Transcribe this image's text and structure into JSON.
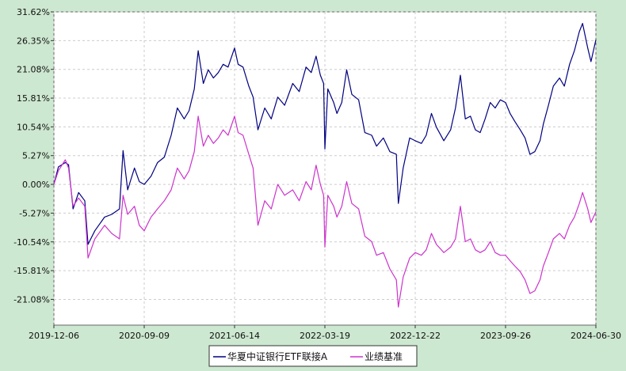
{
  "chart_data": {
    "type": "line",
    "title": "",
    "xlabel": "",
    "ylabel": "",
    "x_tick_labels": [
      "2019-12-06",
      "2020-09-09",
      "2021-06-14",
      "2022-03-19",
      "2022-12-22",
      "2023-09-26",
      "2024-06-30"
    ],
    "x_range": [
      "2019-12-06",
      "2024-06-30"
    ],
    "y_ticks": [
      31.62,
      26.35,
      21.08,
      15.81,
      10.54,
      5.27,
      0.0,
      -5.27,
      -10.54,
      -15.81,
      -21.08
    ],
    "y_tick_labels": [
      "31.62%",
      "26.35%",
      "21.08%",
      "15.81%",
      "10.54%",
      "5.27%",
      "0.00%",
      "-5.27%",
      "-10.54%",
      "-15.81%",
      "-21.08%"
    ],
    "ylim": [
      -25.8,
      31.62
    ],
    "grid": true,
    "legend_position": "bottom-center",
    "series": [
      {
        "name": "华夏中证银行ETF联接A",
        "color": "#000080",
        "points": [
          [
            "2019-12-06",
            0.0
          ],
          [
            "2019-12-20",
            3.2
          ],
          [
            "2020-01-10",
            4.0
          ],
          [
            "2020-01-20",
            3.6
          ],
          [
            "2020-02-03",
            -4.5
          ],
          [
            "2020-02-20",
            -1.5
          ],
          [
            "2020-03-10",
            -3.0
          ],
          [
            "2020-03-20",
            -11.0
          ],
          [
            "2020-04-10",
            -8.5
          ],
          [
            "2020-05-10",
            -6.0
          ],
          [
            "2020-06-01",
            -5.5
          ],
          [
            "2020-06-25",
            -4.5
          ],
          [
            "2020-07-06",
            6.2
          ],
          [
            "2020-07-20",
            -1.0
          ],
          [
            "2020-08-10",
            3.0
          ],
          [
            "2020-08-25",
            0.5
          ],
          [
            "2020-09-09",
            0.0
          ],
          [
            "2020-09-30",
            1.5
          ],
          [
            "2020-10-20",
            4.0
          ],
          [
            "2020-11-10",
            5.0
          ],
          [
            "2020-12-01",
            9.0
          ],
          [
            "2020-12-20",
            14.0
          ],
          [
            "2021-01-10",
            12.0
          ],
          [
            "2021-01-25",
            13.5
          ],
          [
            "2021-02-10",
            17.5
          ],
          [
            "2021-02-22",
            24.5
          ],
          [
            "2021-03-10",
            18.5
          ],
          [
            "2021-03-25",
            21.0
          ],
          [
            "2021-04-10",
            19.5
          ],
          [
            "2021-04-25",
            20.5
          ],
          [
            "2021-05-10",
            22.0
          ],
          [
            "2021-05-25",
            21.5
          ],
          [
            "2021-06-14",
            25.0
          ],
          [
            "2021-06-25",
            22.0
          ],
          [
            "2021-07-10",
            21.5
          ],
          [
            "2021-07-28",
            18.0
          ],
          [
            "2021-08-10",
            16.0
          ],
          [
            "2021-08-25",
            10.0
          ],
          [
            "2021-09-15",
            14.0
          ],
          [
            "2021-10-05",
            12.0
          ],
          [
            "2021-10-25",
            16.0
          ],
          [
            "2021-11-15",
            14.5
          ],
          [
            "2021-12-10",
            18.5
          ],
          [
            "2021-12-30",
            17.0
          ],
          [
            "2022-01-20",
            21.5
          ],
          [
            "2022-02-05",
            20.5
          ],
          [
            "2022-02-20",
            23.5
          ],
          [
            "2022-03-05",
            20.0
          ],
          [
            "2022-03-15",
            18.5
          ],
          [
            "2022-03-19",
            6.5
          ],
          [
            "2022-03-28",
            17.5
          ],
          [
            "2022-04-15",
            15.0
          ],
          [
            "2022-04-25",
            13.0
          ],
          [
            "2022-05-10",
            15.0
          ],
          [
            "2022-05-25",
            21.0
          ],
          [
            "2022-06-10",
            16.5
          ],
          [
            "2022-07-01",
            15.5
          ],
          [
            "2022-07-20",
            9.5
          ],
          [
            "2022-08-10",
            9.0
          ],
          [
            "2022-08-25",
            7.0
          ],
          [
            "2022-09-15",
            8.5
          ],
          [
            "2022-10-05",
            6.0
          ],
          [
            "2022-10-25",
            5.5
          ],
          [
            "2022-10-31",
            -3.5
          ],
          [
            "2022-11-15",
            3.0
          ],
          [
            "2022-12-05",
            8.5
          ],
          [
            "2022-12-22",
            8.0
          ],
          [
            "2023-01-10",
            7.5
          ],
          [
            "2023-01-25",
            9.0
          ],
          [
            "2023-02-10",
            13.0
          ],
          [
            "2023-02-25",
            10.5
          ],
          [
            "2023-03-20",
            8.0
          ],
          [
            "2023-04-10",
            10.0
          ],
          [
            "2023-04-25",
            14.0
          ],
          [
            "2023-05-10",
            20.0
          ],
          [
            "2023-05-25",
            12.0
          ],
          [
            "2023-06-10",
            12.5
          ],
          [
            "2023-06-25",
            10.0
          ],
          [
            "2023-07-10",
            9.5
          ],
          [
            "2023-07-25",
            12.0
          ],
          [
            "2023-08-10",
            15.0
          ],
          [
            "2023-08-25",
            14.0
          ],
          [
            "2023-09-10",
            15.5
          ],
          [
            "2023-09-26",
            15.0
          ],
          [
            "2023-10-10",
            13.0
          ],
          [
            "2023-10-25",
            11.5
          ],
          [
            "2023-11-10",
            10.0
          ],
          [
            "2023-11-25",
            8.5
          ],
          [
            "2023-12-10",
            5.5
          ],
          [
            "2023-12-25",
            6.0
          ],
          [
            "2024-01-10",
            8.0
          ],
          [
            "2024-01-20",
            11.0
          ],
          [
            "2024-02-05",
            14.5
          ],
          [
            "2024-02-20",
            18.0
          ],
          [
            "2024-03-10",
            19.5
          ],
          [
            "2024-03-25",
            18.0
          ],
          [
            "2024-04-10",
            22.0
          ],
          [
            "2024-04-25",
            24.5
          ],
          [
            "2024-05-10",
            28.0
          ],
          [
            "2024-05-20",
            29.5
          ],
          [
            "2024-06-05",
            25.0
          ],
          [
            "2024-06-15",
            22.5
          ],
          [
            "2024-06-30",
            26.5
          ]
        ]
      },
      {
        "name": "业绩基准",
        "color": "#cc33cc",
        "points": [
          [
            "2019-12-06",
            0.0
          ],
          [
            "2019-12-20",
            2.5
          ],
          [
            "2020-01-10",
            4.5
          ],
          [
            "2020-01-20",
            3.0
          ],
          [
            "2020-02-03",
            -4.0
          ],
          [
            "2020-02-20",
            -2.5
          ],
          [
            "2020-03-10",
            -4.0
          ],
          [
            "2020-03-20",
            -13.5
          ],
          [
            "2020-04-10",
            -10.0
          ],
          [
            "2020-05-10",
            -7.5
          ],
          [
            "2020-06-01",
            -9.0
          ],
          [
            "2020-06-25",
            -10.0
          ],
          [
            "2020-07-06",
            -2.0
          ],
          [
            "2020-07-20",
            -5.5
          ],
          [
            "2020-08-10",
            -4.0
          ],
          [
            "2020-08-25",
            -7.5
          ],
          [
            "2020-09-09",
            -8.5
          ],
          [
            "2020-09-30",
            -6.0
          ],
          [
            "2020-10-20",
            -4.5
          ],
          [
            "2020-11-10",
            -3.0
          ],
          [
            "2020-12-01",
            -1.0
          ],
          [
            "2020-12-20",
            3.0
          ],
          [
            "2021-01-10",
            1.0
          ],
          [
            "2021-01-25",
            2.5
          ],
          [
            "2021-02-10",
            6.0
          ],
          [
            "2021-02-22",
            12.5
          ],
          [
            "2021-03-10",
            7.0
          ],
          [
            "2021-03-25",
            9.0
          ],
          [
            "2021-04-10",
            7.5
          ],
          [
            "2021-04-25",
            8.5
          ],
          [
            "2021-05-10",
            10.0
          ],
          [
            "2021-05-25",
            9.0
          ],
          [
            "2021-06-14",
            12.5
          ],
          [
            "2021-06-25",
            9.5
          ],
          [
            "2021-07-10",
            9.0
          ],
          [
            "2021-07-28",
            5.5
          ],
          [
            "2021-08-10",
            3.0
          ],
          [
            "2021-08-25",
            -7.5
          ],
          [
            "2021-09-15",
            -3.0
          ],
          [
            "2021-10-05",
            -4.5
          ],
          [
            "2021-10-25",
            0.0
          ],
          [
            "2021-11-15",
            -2.0
          ],
          [
            "2021-12-10",
            -1.0
          ],
          [
            "2021-12-30",
            -3.0
          ],
          [
            "2022-01-20",
            0.5
          ],
          [
            "2022-02-05",
            -1.0
          ],
          [
            "2022-02-20",
            3.5
          ],
          [
            "2022-03-05",
            0.0
          ],
          [
            "2022-03-15",
            -2.0
          ],
          [
            "2022-03-19",
            -11.5
          ],
          [
            "2022-03-28",
            -2.0
          ],
          [
            "2022-04-15",
            -4.0
          ],
          [
            "2022-04-25",
            -6.0
          ],
          [
            "2022-05-10",
            -4.0
          ],
          [
            "2022-05-25",
            0.5
          ],
          [
            "2022-06-10",
            -3.5
          ],
          [
            "2022-07-01",
            -4.5
          ],
          [
            "2022-07-20",
            -9.5
          ],
          [
            "2022-08-10",
            -10.5
          ],
          [
            "2022-08-25",
            -13.0
          ],
          [
            "2022-09-15",
            -12.5
          ],
          [
            "2022-10-05",
            -15.5
          ],
          [
            "2022-10-25",
            -17.5
          ],
          [
            "2022-10-31",
            -22.5
          ],
          [
            "2022-11-15",
            -17.0
          ],
          [
            "2022-12-05",
            -13.5
          ],
          [
            "2022-12-22",
            -12.5
          ],
          [
            "2023-01-10",
            -13.0
          ],
          [
            "2023-01-25",
            -12.0
          ],
          [
            "2023-02-10",
            -9.0
          ],
          [
            "2023-02-25",
            -11.0
          ],
          [
            "2023-03-20",
            -12.5
          ],
          [
            "2023-04-10",
            -11.5
          ],
          [
            "2023-04-25",
            -10.0
          ],
          [
            "2023-05-10",
            -4.0
          ],
          [
            "2023-05-25",
            -10.5
          ],
          [
            "2023-06-10",
            -10.0
          ],
          [
            "2023-06-25",
            -12.0
          ],
          [
            "2023-07-10",
            -12.5
          ],
          [
            "2023-07-25",
            -12.0
          ],
          [
            "2023-08-10",
            -10.5
          ],
          [
            "2023-08-25",
            -12.5
          ],
          [
            "2023-09-10",
            -13.0
          ],
          [
            "2023-09-26",
            -13.0
          ],
          [
            "2023-10-10",
            -14.0
          ],
          [
            "2023-10-25",
            -15.0
          ],
          [
            "2023-11-10",
            -16.0
          ],
          [
            "2023-11-25",
            -17.5
          ],
          [
            "2023-12-10",
            -20.0
          ],
          [
            "2023-12-25",
            -19.5
          ],
          [
            "2024-01-10",
            -17.5
          ],
          [
            "2024-01-20",
            -15.0
          ],
          [
            "2024-02-05",
            -12.5
          ],
          [
            "2024-02-20",
            -10.0
          ],
          [
            "2024-03-10",
            -9.0
          ],
          [
            "2024-03-25",
            -10.0
          ],
          [
            "2024-04-10",
            -7.5
          ],
          [
            "2024-04-25",
            -6.0
          ],
          [
            "2024-05-10",
            -3.5
          ],
          [
            "2024-05-20",
            -1.5
          ],
          [
            "2024-06-05",
            -4.5
          ],
          [
            "2024-06-15",
            -7.0
          ],
          [
            "2024-06-30",
            -5.0
          ]
        ]
      }
    ]
  },
  "colors": {
    "background": "#cde8d0",
    "plot_background": "#ffffff",
    "grid": "#cccccc"
  }
}
